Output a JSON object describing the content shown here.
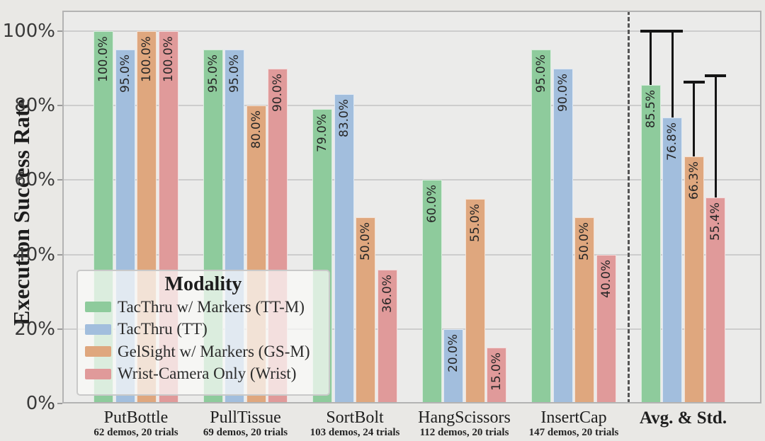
{
  "figure": {
    "background": "#e9e8e5",
    "plot_background": "#ebebea",
    "grid_color": "#cdcdcd"
  },
  "chart_data": {
    "type": "bar",
    "title": "",
    "xlabel": "",
    "ylabel": "Execution Success Rate",
    "ylim": [
      0,
      100
    ],
    "grid": true,
    "yticks": [
      0,
      20,
      40,
      60,
      80,
      100
    ],
    "ytick_labels": [
      "0%",
      "20%",
      "40%",
      "60%",
      "80%",
      "100%"
    ],
    "categories": [
      "PutBottle",
      "PullTissue",
      "SortBolt",
      "HangScissors",
      "InsertCap",
      "Avg. & Std."
    ],
    "category_subtitles": [
      "62 demos, 20 trials",
      "69 demos, 20 trials",
      "103 demos, 24 trials",
      "112 demos, 20 trials",
      "147 demos, 20 trials",
      ""
    ],
    "series": [
      {
        "name": "TacThru w/ Markers (TT-M)",
        "color": "#8ecb9c",
        "values": [
          100,
          95,
          79,
          60,
          95,
          85.5
        ],
        "value_labels": [
          "100.0%",
          "95.0%",
          "79.0%",
          "60.0%",
          "95.0%",
          "85.5%"
        ],
        "avg_error_top": 100
      },
      {
        "name": "TacThru (TT)",
        "color": "#a2bedd",
        "values": [
          95,
          95,
          83,
          20,
          90,
          76.8
        ],
        "value_labels": [
          "95.0%",
          "95.0%",
          "83.0%",
          "20.0%",
          "90.0%",
          "76.8%"
        ],
        "avg_error_top": 100
      },
      {
        "name": "GelSight w/ Markers (GS-M)",
        "color": "#dfa77e",
        "values": [
          100,
          80,
          50,
          55,
          50,
          66.3
        ],
        "value_labels": [
          "100.0%",
          "80.0%",
          "50.0%",
          "55.0%",
          "50.0%",
          "66.3%"
        ],
        "avg_error_top": 86.3
      },
      {
        "name": "Wrist-Camera Only (Wrist)",
        "color": "#e09a9a",
        "values": [
          100,
          90,
          36,
          15,
          40,
          55.4
        ],
        "value_labels": [
          "100.0%",
          "90.0%",
          "36.0%",
          "15.0%",
          "40.0%",
          "55.4%"
        ],
        "avg_error_top": 88
      }
    ],
    "legend": {
      "title": "Modality",
      "position": "lower left"
    },
    "separator": {
      "after_category_index": 4,
      "style": "dashed"
    }
  }
}
